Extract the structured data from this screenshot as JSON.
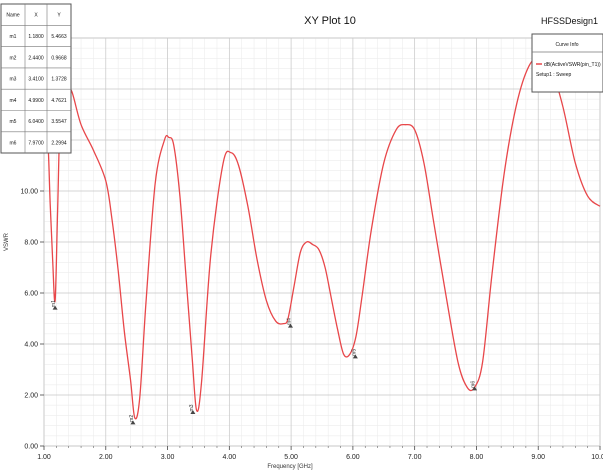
{
  "chart_data": {
    "type": "line",
    "title": "XY Plot 10",
    "project": "HFSSDesign1",
    "xlabel": "Frequency [GHz]",
    "ylabel": "VSWR",
    "xlim": [
      1.0,
      10.0
    ],
    "ylim": [
      0.0,
      16.0
    ],
    "x_ticks": [
      "1.00",
      "2.00",
      "3.00",
      "4.00",
      "5.00",
      "6.00",
      "7.00",
      "8.00",
      "9.00",
      "10.00"
    ],
    "y_ticks": [
      "0.00",
      "2.00",
      "4.00",
      "6.00",
      "8.00",
      "10.00",
      "12.00",
      "14.00",
      "16.00"
    ],
    "grid": true,
    "series": [
      {
        "name": "dB(ActiveVSWR(pin_T1))",
        "setup": "Setup1 : Sweep",
        "color": "#e8474a",
        "x": [
          1.0,
          1.06,
          1.1,
          1.14,
          1.18,
          1.22,
          1.27,
          1.35,
          1.45,
          1.6,
          1.8,
          2.0,
          2.1,
          2.2,
          2.3,
          2.4,
          2.47,
          2.55,
          2.65,
          2.8,
          2.95,
          3.02,
          3.1,
          3.2,
          3.3,
          3.4,
          3.47,
          3.55,
          3.7,
          3.9,
          4.03,
          4.15,
          4.3,
          4.45,
          4.6,
          4.75,
          4.88,
          4.95,
          5.05,
          5.15,
          5.25,
          5.35,
          5.45,
          5.55,
          5.65,
          5.75,
          5.85,
          5.95,
          6.05,
          6.15,
          6.3,
          6.5,
          6.7,
          6.85,
          7.0,
          7.15,
          7.3,
          7.5,
          7.7,
          7.85,
          7.97,
          8.1,
          8.25,
          8.45,
          8.65,
          8.85,
          9.05,
          9.2,
          9.4,
          9.6,
          9.8,
          10.0
        ],
        "values": [
          12.9,
          12.1,
          9.5,
          7.3,
          5.7,
          9.2,
          13.5,
          14.1,
          13.9,
          12.6,
          11.6,
          10.4,
          8.9,
          6.9,
          4.5,
          2.6,
          1.1,
          1.9,
          5.6,
          10.3,
          12.0,
          12.1,
          11.8,
          9.8,
          6.6,
          3.4,
          1.4,
          2.5,
          7.5,
          11.1,
          11.5,
          11.0,
          9.4,
          7.3,
          5.7,
          4.9,
          4.8,
          5.0,
          6.3,
          7.6,
          8.0,
          7.9,
          7.7,
          7.0,
          5.8,
          4.6,
          3.6,
          3.6,
          4.3,
          5.9,
          8.5,
          11.1,
          12.4,
          12.6,
          12.4,
          11.1,
          8.9,
          6.0,
          3.3,
          2.3,
          2.3,
          3.3,
          6.7,
          10.7,
          13.4,
          14.9,
          15.3,
          14.9,
          13.3,
          11.1,
          9.8,
          9.4
        ]
      }
    ],
    "markers": [
      {
        "name": "m1",
        "x": 1.18,
        "y": 5.4663
      },
      {
        "name": "m2",
        "x": 2.44,
        "y": 0.9668
      },
      {
        "name": "m3",
        "x": 3.41,
        "y": 1.3728
      },
      {
        "name": "m4",
        "x": 4.99,
        "y": 4.7621
      },
      {
        "name": "m5",
        "x": 6.04,
        "y": 3.5547
      },
      {
        "name": "m6",
        "x": 7.97,
        "y": 2.2994
      }
    ],
    "marker_table": {
      "headers": [
        "Name",
        "X",
        "Y"
      ],
      "rows": [
        [
          "m1",
          "1.1800",
          "5.4663"
        ],
        [
          "m2",
          "2.4400",
          "0.9668"
        ],
        [
          "m3",
          "3.4100",
          "1.3728"
        ],
        [
          "m4",
          "4.9900",
          "4.7621"
        ],
        [
          "m5",
          "6.0400",
          "3.5547"
        ],
        [
          "m6",
          "7.9700",
          "2.2994"
        ]
      ]
    },
    "legend_title": "Curve Info",
    "legend_position": "top-right"
  }
}
